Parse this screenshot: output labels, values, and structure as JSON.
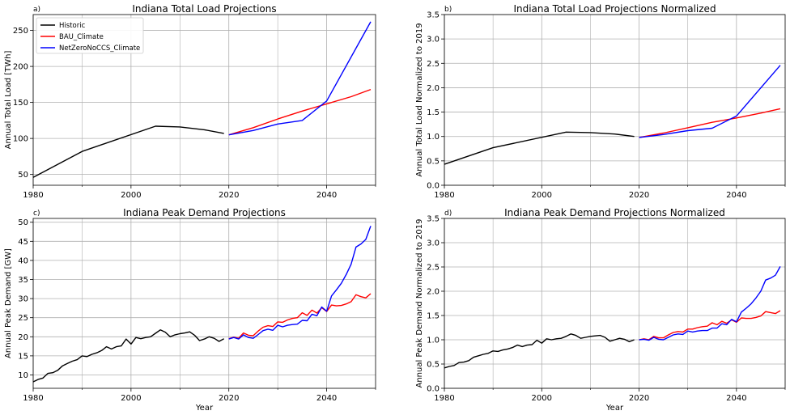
{
  "legend": {
    "historic": "Historic",
    "bau": "BAU_Climate",
    "netzero": "NetZeroNoCCS_Climate"
  },
  "colors": {
    "historic": "#000000",
    "bau": "#ff0000",
    "netzero": "#0000ff",
    "grid": "#b0b0b0"
  },
  "chart_data": [
    {
      "type": "line",
      "panel_label": "a)",
      "title": "Indiana Total Load Projections",
      "xlabel": "",
      "ylabel": "Annual Total Load [TWh]",
      "xlim": [
        1980,
        2050
      ],
      "ylim": [
        35,
        272
      ],
      "xticks": [
        1980,
        2000,
        2020,
        2040
      ],
      "yticks": [
        50,
        100,
        150,
        200,
        250
      ],
      "grid": true,
      "legend_position": "top-left",
      "series": [
        {
          "name": "Historic",
          "color": "#000000",
          "x": [
            1980,
            1990,
            2005,
            2010,
            2015,
            2019
          ],
          "y": [
            46,
            82,
            117,
            116,
            112,
            107
          ]
        },
        {
          "name": "BAU_Climate",
          "color": "#ff0000",
          "x": [
            2020,
            2025,
            2030,
            2035,
            2040,
            2045,
            2049
          ],
          "y": [
            105,
            115,
            127,
            138,
            148,
            158,
            168
          ]
        },
        {
          "name": "NetZeroNoCCS_Climate",
          "color": "#0000ff",
          "x": [
            2020,
            2025,
            2030,
            2035,
            2040,
            2049
          ],
          "y": [
            105,
            111,
            120,
            125,
            152,
            262
          ]
        }
      ]
    },
    {
      "type": "line",
      "panel_label": "b)",
      "title": "Indiana Total Load Projections Normalized",
      "xlabel": "",
      "ylabel": "Annual Total Load Normalized to 2019",
      "xlim": [
        1980,
        2050
      ],
      "ylim": [
        0,
        3.5
      ],
      "xticks": [
        1980,
        2000,
        2020,
        2040
      ],
      "yticks": [
        0.0,
        0.5,
        1.0,
        1.5,
        2.0,
        2.5,
        3.0,
        3.5
      ],
      "ytick_labels": [
        "0.0",
        "0.5",
        "1.0",
        "1.5",
        "2.0",
        "2.5",
        "3.0",
        "3.5"
      ],
      "grid": true,
      "series": [
        {
          "name": "Historic",
          "color": "#000000",
          "x": [
            1980,
            1990,
            2005,
            2010,
            2015,
            2019
          ],
          "y": [
            0.43,
            0.77,
            1.09,
            1.08,
            1.05,
            1.0
          ]
        },
        {
          "name": "BAU_Climate",
          "color": "#ff0000",
          "x": [
            2020,
            2025,
            2030,
            2035,
            2040,
            2045,
            2049
          ],
          "y": [
            0.98,
            1.07,
            1.18,
            1.29,
            1.38,
            1.48,
            1.57
          ]
        },
        {
          "name": "NetZeroNoCCS_Climate",
          "color": "#0000ff",
          "x": [
            2020,
            2025,
            2030,
            2035,
            2040,
            2049
          ],
          "y": [
            0.98,
            1.04,
            1.12,
            1.17,
            1.42,
            2.46
          ]
        }
      ]
    },
    {
      "type": "line",
      "panel_label": "c)",
      "title": "Indiana Peak Demand Projections",
      "xlabel": "Year",
      "ylabel": "Annual Peak Demand [GW]",
      "xlim": [
        1980,
        2050
      ],
      "ylim": [
        6.5,
        51
      ],
      "xticks": [
        1980,
        2000,
        2020,
        2040
      ],
      "yticks": [
        10,
        15,
        20,
        25,
        30,
        35,
        40,
        45,
        50
      ],
      "grid": true,
      "series": [
        {
          "name": "Historic",
          "color": "#000000",
          "x": [
            1980,
            1981,
            1982,
            1983,
            1984,
            1985,
            1986,
            1987,
            1988,
            1989,
            1990,
            1991,
            1992,
            1993,
            1994,
            1995,
            1996,
            1997,
            1998,
            1999,
            2000,
            2001,
            2002,
            2003,
            2004,
            2005,
            2006,
            2007,
            2008,
            2009,
            2010,
            2011,
            2012,
            2013,
            2014,
            2015,
            2016,
            2017,
            2018,
            2019
          ],
          "y": [
            8.2,
            8.8,
            9.2,
            10.4,
            10.6,
            11.2,
            12.4,
            13.0,
            13.6,
            14.0,
            15.0,
            14.8,
            15.4,
            15.8,
            16.4,
            17.4,
            16.8,
            17.4,
            17.6,
            19.4,
            18.1,
            19.8,
            19.5,
            19.8,
            20.0,
            20.9,
            21.8,
            21.2,
            20.0,
            20.5,
            20.8,
            21.0,
            21.3,
            20.4,
            19.0,
            19.4,
            20.0,
            19.6,
            18.8,
            19.5
          ]
        },
        {
          "name": "BAU_Climate",
          "color": "#ff0000",
          "x": [
            2020,
            2021,
            2022,
            2023,
            2024,
            2025,
            2026,
            2027,
            2028,
            2029,
            2030,
            2031,
            2032,
            2033,
            2034,
            2035,
            2036,
            2037,
            2038,
            2039,
            2040,
            2041,
            2042,
            2043,
            2044,
            2045,
            2046,
            2047,
            2048,
            2049
          ],
          "y": [
            19.5,
            19.9,
            19.6,
            21.0,
            20.4,
            20.3,
            21.5,
            22.5,
            22.9,
            22.7,
            23.9,
            23.8,
            24.4,
            24.8,
            25.0,
            26.3,
            25.6,
            27.0,
            26.2,
            27.6,
            26.6,
            28.3,
            28.1,
            28.2,
            28.6,
            29.2,
            31.0,
            30.5,
            30.2,
            31.3
          ]
        },
        {
          "name": "NetZeroNoCCS_Climate",
          "color": "#0000ff",
          "x": [
            2020,
            2021,
            2022,
            2023,
            2024,
            2025,
            2026,
            2027,
            2028,
            2029,
            2030,
            2031,
            2032,
            2033,
            2034,
            2035,
            2036,
            2037,
            2038,
            2039,
            2040,
            2041,
            2042,
            2043,
            2044,
            2045,
            2046,
            2047,
            2048,
            2049
          ],
          "y": [
            19.4,
            19.8,
            19.4,
            20.5,
            19.8,
            19.6,
            20.6,
            21.6,
            22.0,
            21.7,
            23.0,
            22.6,
            23.0,
            23.2,
            23.3,
            24.3,
            24.2,
            25.9,
            25.5,
            27.8,
            26.7,
            30.7,
            32.3,
            34.0,
            36.3,
            39.0,
            43.5,
            44.3,
            45.5,
            49.0
          ]
        }
      ]
    },
    {
      "type": "line",
      "panel_label": "d)",
      "title": "Indiana Peak Demand Projections Normalized",
      "xlabel": "Year",
      "ylabel": "Annual Peak Demand Normalized to 2019",
      "xlim": [
        1980,
        2050
      ],
      "ylim": [
        0,
        3.5
      ],
      "xticks": [
        1980,
        2000,
        2020,
        2040
      ],
      "yticks": [
        0.0,
        0.5,
        1.0,
        1.5,
        2.0,
        2.5,
        3.0,
        3.5
      ],
      "ytick_labels": [
        "0.0",
        "0.5",
        "1.0",
        "1.5",
        "2.0",
        "2.5",
        "3.0",
        "3.5"
      ],
      "grid": true,
      "series": [
        {
          "name": "Historic",
          "color": "#000000",
          "x": [
            1980,
            1981,
            1982,
            1983,
            1984,
            1985,
            1986,
            1987,
            1988,
            1989,
            1990,
            1991,
            1992,
            1993,
            1994,
            1995,
            1996,
            1997,
            1998,
            1999,
            2000,
            2001,
            2002,
            2003,
            2004,
            2005,
            2006,
            2007,
            2008,
            2009,
            2010,
            2011,
            2012,
            2013,
            2014,
            2015,
            2016,
            2017,
            2018,
            2019
          ],
          "y": [
            0.42,
            0.45,
            0.47,
            0.53,
            0.54,
            0.57,
            0.64,
            0.67,
            0.7,
            0.72,
            0.77,
            0.76,
            0.79,
            0.81,
            0.84,
            0.89,
            0.86,
            0.89,
            0.9,
            0.99,
            0.93,
            1.02,
            1.0,
            1.02,
            1.03,
            1.07,
            1.12,
            1.09,
            1.03,
            1.05,
            1.07,
            1.08,
            1.09,
            1.05,
            0.97,
            1.0,
            1.03,
            1.01,
            0.96,
            1.0
          ]
        },
        {
          "name": "BAU_Climate",
          "color": "#ff0000",
          "x": [
            2020,
            2021,
            2022,
            2023,
            2024,
            2025,
            2026,
            2027,
            2028,
            2029,
            2030,
            2031,
            2032,
            2033,
            2034,
            2035,
            2036,
            2037,
            2038,
            2039,
            2040,
            2041,
            2042,
            2043,
            2044,
            2045,
            2046,
            2047,
            2048,
            2049
          ],
          "y": [
            1.0,
            1.02,
            1.0,
            1.07,
            1.04,
            1.04,
            1.1,
            1.15,
            1.17,
            1.16,
            1.22,
            1.22,
            1.25,
            1.27,
            1.28,
            1.35,
            1.31,
            1.38,
            1.34,
            1.41,
            1.36,
            1.45,
            1.44,
            1.44,
            1.46,
            1.49,
            1.58,
            1.56,
            1.54,
            1.6
          ]
        },
        {
          "name": "NetZeroNoCCS_Climate",
          "color": "#0000ff",
          "x": [
            2020,
            2021,
            2022,
            2023,
            2024,
            2025,
            2026,
            2027,
            2028,
            2029,
            2030,
            2031,
            2032,
            2033,
            2034,
            2035,
            2036,
            2037,
            2038,
            2039,
            2040,
            2041,
            2042,
            2043,
            2044,
            2045,
            2046,
            2047,
            2048,
            2049
          ],
          "y": [
            1.0,
            1.01,
            0.99,
            1.05,
            1.01,
            1.0,
            1.05,
            1.1,
            1.12,
            1.11,
            1.18,
            1.16,
            1.18,
            1.19,
            1.19,
            1.24,
            1.24,
            1.33,
            1.31,
            1.42,
            1.37,
            1.57,
            1.65,
            1.74,
            1.86,
            2.0,
            2.23,
            2.27,
            2.33,
            2.51
          ]
        }
      ]
    }
  ]
}
